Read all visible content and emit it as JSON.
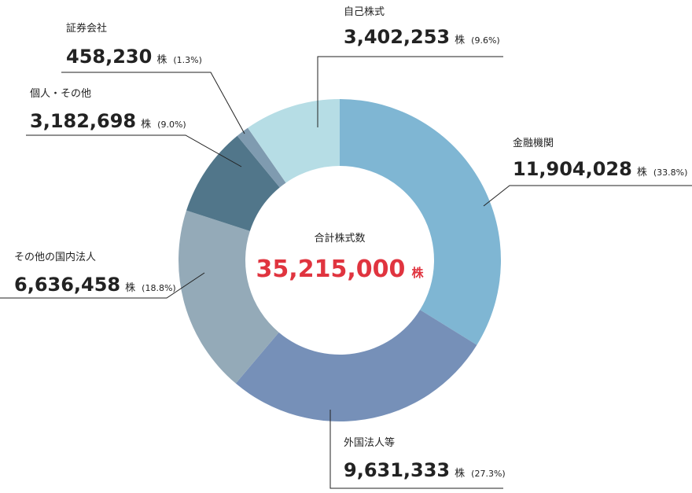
{
  "chart_data": {
    "type": "pie",
    "donut": true,
    "center": {
      "title": "合計株式数",
      "value": "35,215,000",
      "unit": "株"
    },
    "slices": [
      {
        "name": "金融機関",
        "value": 11904028,
        "display": "11,904,028",
        "unit": "株",
        "pct": "(33.8%)",
        "color": "#7fb6d3"
      },
      {
        "name": "外国法人等",
        "value": 9631333,
        "display": "9,631,333",
        "unit": "株",
        "pct": "(27.3%)",
        "color": "#7690b8"
      },
      {
        "name": "その他の国内法人",
        "value": 6636458,
        "display": "6,636,458",
        "unit": "株",
        "pct": "(18.8%)",
        "color": "#94aab8"
      },
      {
        "name": "個人・その他",
        "value": 3182698,
        "display": "3,182,698",
        "unit": "株",
        "pct": "(9.0%)",
        "color": "#51768a"
      },
      {
        "name": "証券会社",
        "value": 458230,
        "display": "458,230",
        "unit": "株",
        "pct": "(1.3%)",
        "color": "#7f9bb0"
      },
      {
        "name": "自己株式",
        "value": 3402253,
        "display": "3,402,253",
        "unit": "株",
        "pct": "(9.6%)",
        "color": "#b6dde5"
      }
    ]
  }
}
